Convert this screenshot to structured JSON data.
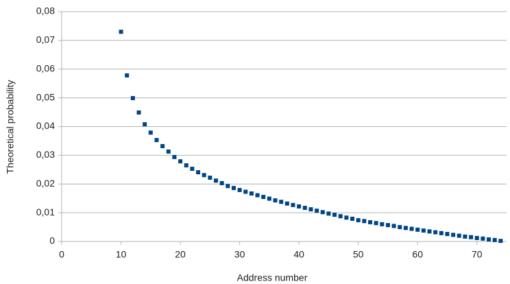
{
  "chart_data": {
    "type": "scatter",
    "x_label": "Address number",
    "y_label": "Theoretical probability",
    "x": [
      10,
      11,
      12,
      13,
      14,
      15,
      16,
      17,
      18,
      19,
      20,
      21,
      22,
      23,
      24,
      25,
      26,
      27,
      28,
      29,
      30,
      31,
      32,
      33,
      34,
      35,
      36,
      37,
      38,
      39,
      40,
      41,
      42,
      43,
      44,
      45,
      46,
      47,
      48,
      49,
      50,
      51,
      52,
      53,
      54,
      55,
      56,
      57,
      58,
      59,
      60,
      61,
      62,
      63,
      64,
      65,
      66,
      67,
      68,
      69,
      70,
      71,
      72,
      73,
      74
    ],
    "values": [
      0.073,
      0.0578,
      0.0499,
      0.0449,
      0.0408,
      0.0379,
      0.0353,
      0.0332,
      0.0313,
      0.0294,
      0.0279,
      0.0265,
      0.0253,
      0.0241,
      0.0231,
      0.0222,
      0.0212,
      0.0203,
      0.0193,
      0.0186,
      0.0179,
      0.0173,
      0.0167,
      0.0161,
      0.0155,
      0.0149,
      0.0143,
      0.0138,
      0.0132,
      0.0127,
      0.0122,
      0.0117,
      0.0112,
      0.0107,
      0.0102,
      0.0097,
      0.0093,
      0.0088,
      0.0083,
      0.0079,
      0.0074,
      0.0071,
      0.0067,
      0.0064,
      0.006,
      0.0057,
      0.0054,
      0.005,
      0.0047,
      0.0044,
      0.0041,
      0.0038,
      0.0035,
      0.0032,
      0.0029,
      0.0026,
      0.0023,
      0.002,
      0.0017,
      0.0015,
      0.0012,
      0.001,
      0.0007,
      0.0005,
      0.0002
    ],
    "color": "#004586",
    "xlim": [
      0,
      75
    ],
    "xticks": [
      0,
      10,
      20,
      30,
      40,
      50,
      60,
      70
    ],
    "ylim": [
      0,
      0.08
    ],
    "yticks": [
      0,
      {
        "value": 0.01,
        "label": "0,01"
      },
      {
        "value": 0.02,
        "label": "0,02"
      },
      {
        "value": 0.03,
        "label": "0,03"
      },
      {
        "value": 0.04,
        "label": "0,04"
      },
      {
        "value": 0.05,
        "label": "0,05"
      },
      {
        "value": 0.06,
        "label": "0,06"
      },
      {
        "value": 0.07,
        "label": "0,07"
      },
      {
        "value": 0.08,
        "label": "0,08"
      }
    ],
    "grid": true
  }
}
